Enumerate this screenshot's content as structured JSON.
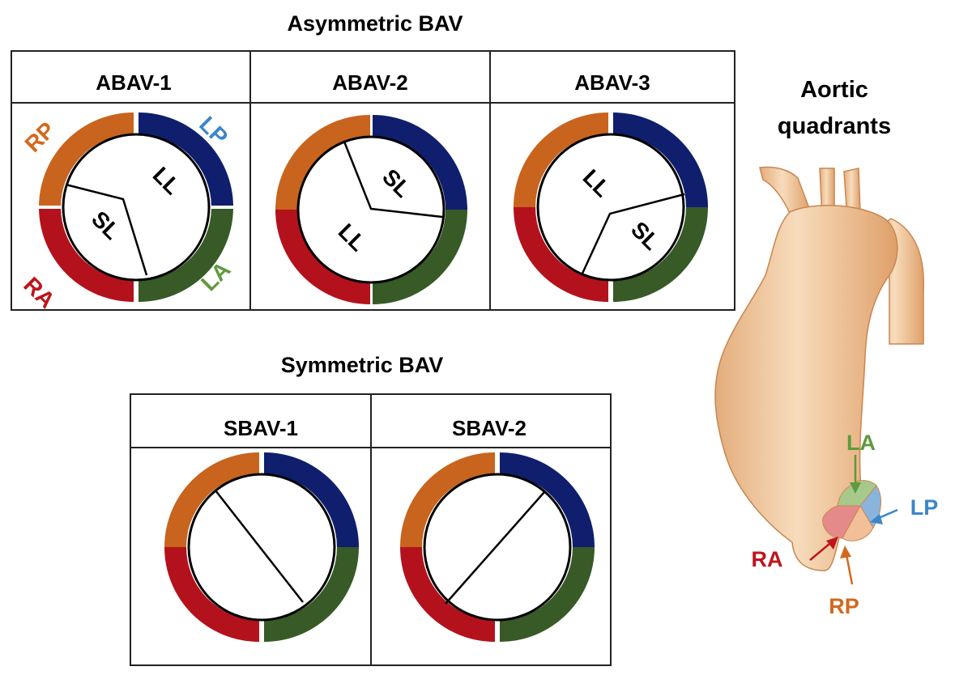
{
  "asymmetric": {
    "title": "Asymmetric BAV",
    "panels": [
      {
        "label": "ABAV-1",
        "leaflets": [
          "LL",
          "SL"
        ],
        "commissures": "rp-ra to la"
      },
      {
        "label": "ABAV-2",
        "leaflets": [
          "SL",
          "LL"
        ]
      },
      {
        "label": "ABAV-3",
        "leaflets": [
          "LL",
          "SL"
        ]
      }
    ]
  },
  "quadrant_labels": {
    "rp": "RP",
    "lp": "LP",
    "ra": "RA",
    "la": "LA"
  },
  "symmetric": {
    "title": "Symmetric BAV",
    "panels": [
      {
        "label": "SBAV-1"
      },
      {
        "label": "SBAV-2"
      }
    ]
  },
  "aorta": {
    "title_line1": "Aortic",
    "title_line2": "quadrants",
    "labels": {
      "la": "LA",
      "lp": "LP",
      "ra": "RA",
      "rp": "RP"
    }
  },
  "colors": {
    "rp": "#c8641e",
    "lp": "#0f1f6e",
    "la": "#375a27",
    "ra": "#b3121c",
    "rp_text": "#d2691e",
    "lp_text": "#3a86c8",
    "la_text": "#5f9a3c",
    "ra_text": "#c0141c",
    "aorta": "#f0c79c"
  }
}
